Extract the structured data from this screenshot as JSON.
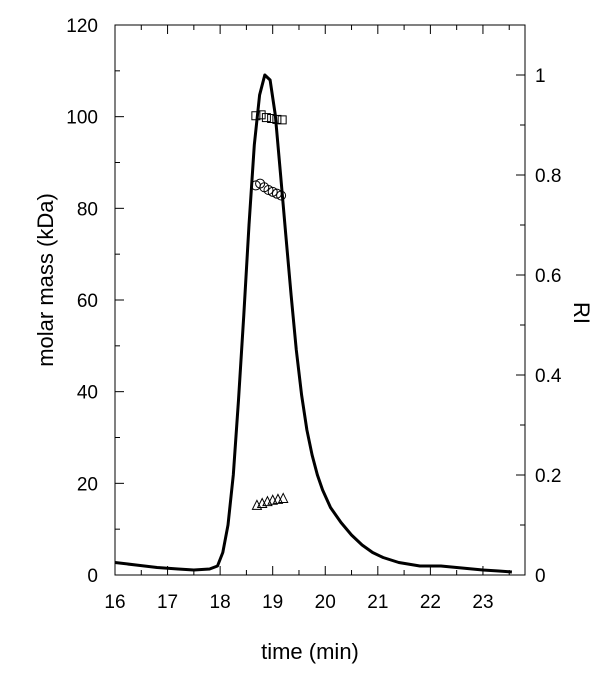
{
  "chart_data": {
    "type": "line",
    "xlabel": "time (min)",
    "ylabel_left": "molar mass (kDa)",
    "ylabel_right": "RI",
    "xlim": [
      16,
      23.8
    ],
    "ylim_left": [
      0,
      120
    ],
    "ylim_right": [
      0,
      1.1
    ],
    "grid": false,
    "x_ticks": [
      "16",
      "17",
      "18",
      "19",
      "20",
      "21",
      "22",
      "23"
    ],
    "y_left_ticks": [
      "0",
      "20",
      "40",
      "60",
      "80",
      "100",
      "120"
    ],
    "y_right_ticks": [
      "0",
      "0.2",
      "0.4",
      "0.6",
      "0.8",
      "1"
    ],
    "ri_trace": {
      "axis": "right",
      "style": "thick black line",
      "x": [
        16.0,
        16.4,
        16.8,
        17.2,
        17.5,
        17.8,
        17.95,
        18.05,
        18.15,
        18.25,
        18.35,
        18.45,
        18.55,
        18.65,
        18.75,
        18.85,
        18.95,
        19.05,
        19.15,
        19.25,
        19.35,
        19.45,
        19.55,
        19.65,
        19.75,
        19.85,
        19.95,
        20.1,
        20.3,
        20.5,
        20.7,
        20.9,
        21.1,
        21.4,
        21.8,
        22.2,
        22.6,
        23.0,
        23.3,
        23.55
      ],
      "y": [
        0.025,
        0.02,
        0.015,
        0.012,
        0.01,
        0.012,
        0.018,
        0.045,
        0.1,
        0.2,
        0.35,
        0.52,
        0.7,
        0.86,
        0.96,
        1.0,
        0.99,
        0.92,
        0.8,
        0.68,
        0.56,
        0.45,
        0.36,
        0.29,
        0.24,
        0.2,
        0.17,
        0.135,
        0.105,
        0.08,
        0.06,
        0.045,
        0.035,
        0.025,
        0.018,
        0.018,
        0.014,
        0.01,
        0.008,
        0.006
      ]
    },
    "series": [
      {
        "marker": "square",
        "axis": "left",
        "x": [
          18.68,
          18.78,
          18.88,
          18.98,
          19.08,
          19.18
        ],
        "y": [
          100.2,
          100.4,
          99.8,
          99.6,
          99.4,
          99.3
        ]
      },
      {
        "marker": "circle",
        "axis": "left",
        "x": [
          18.68,
          18.76,
          18.84,
          18.92,
          19.0,
          19.08,
          19.16
        ],
        "y": [
          85.0,
          85.4,
          84.6,
          84.0,
          83.6,
          83.2,
          82.8
        ]
      },
      {
        "marker": "triangle",
        "axis": "left",
        "x": [
          18.7,
          18.8,
          18.9,
          19.0,
          19.1,
          19.2
        ],
        "y": [
          15.2,
          15.6,
          16.0,
          16.3,
          16.5,
          16.7
        ]
      }
    ]
  }
}
